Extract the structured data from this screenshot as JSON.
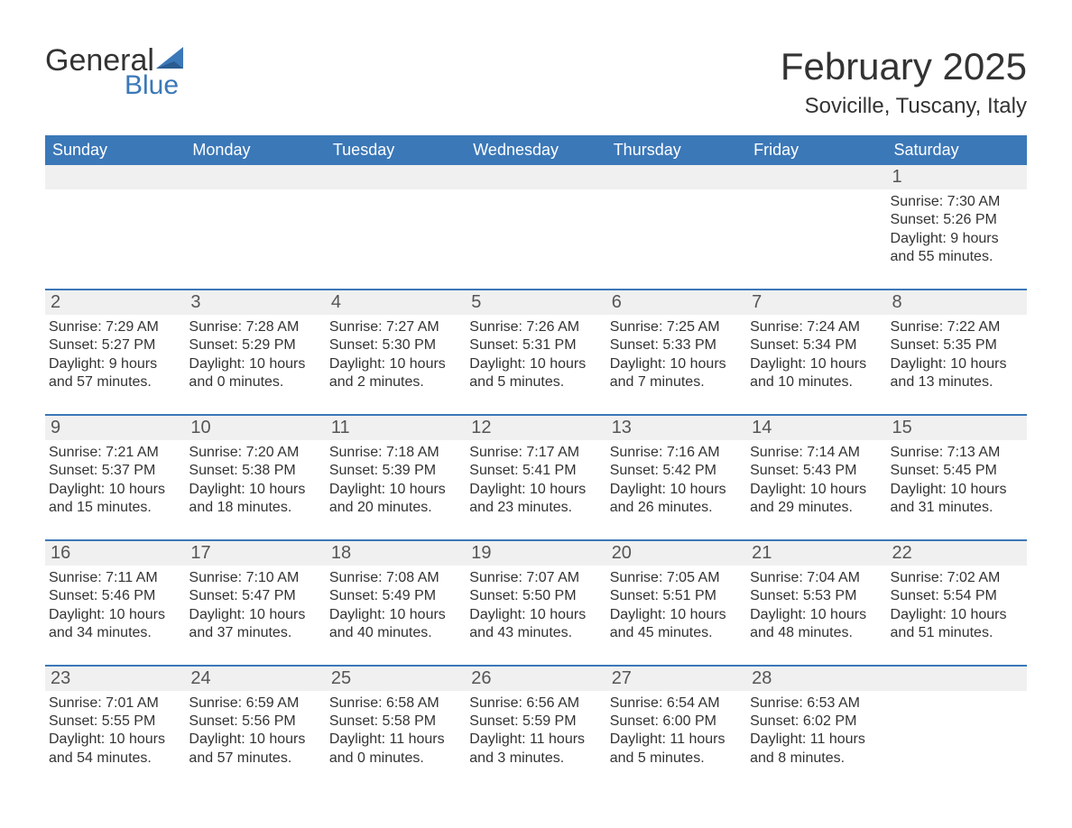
{
  "logo": {
    "text_general": "General",
    "text_blue": "Blue"
  },
  "title": {
    "month": "February 2025",
    "location": "Sovicille, Tuscany, Italy"
  },
  "colors": {
    "header_bg": "#3b78b8",
    "header_fg": "#ffffff",
    "daynum_bg": "#f0f0f0",
    "daynum_border": "#3b78b8",
    "text": "#333333",
    "logo_blue": "#3b78b8"
  },
  "dayNames": [
    "Sunday",
    "Monday",
    "Tuesday",
    "Wednesday",
    "Thursday",
    "Friday",
    "Saturday"
  ],
  "weeks": [
    [
      null,
      null,
      null,
      null,
      null,
      null,
      {
        "n": "1",
        "sunrise": "Sunrise: 7:30 AM",
        "sunset": "Sunset: 5:26 PM",
        "daylight": "Daylight: 9 hours and 55 minutes."
      }
    ],
    [
      {
        "n": "2",
        "sunrise": "Sunrise: 7:29 AM",
        "sunset": "Sunset: 5:27 PM",
        "daylight": "Daylight: 9 hours and 57 minutes."
      },
      {
        "n": "3",
        "sunrise": "Sunrise: 7:28 AM",
        "sunset": "Sunset: 5:29 PM",
        "daylight": "Daylight: 10 hours and 0 minutes."
      },
      {
        "n": "4",
        "sunrise": "Sunrise: 7:27 AM",
        "sunset": "Sunset: 5:30 PM",
        "daylight": "Daylight: 10 hours and 2 minutes."
      },
      {
        "n": "5",
        "sunrise": "Sunrise: 7:26 AM",
        "sunset": "Sunset: 5:31 PM",
        "daylight": "Daylight: 10 hours and 5 minutes."
      },
      {
        "n": "6",
        "sunrise": "Sunrise: 7:25 AM",
        "sunset": "Sunset: 5:33 PM",
        "daylight": "Daylight: 10 hours and 7 minutes."
      },
      {
        "n": "7",
        "sunrise": "Sunrise: 7:24 AM",
        "sunset": "Sunset: 5:34 PM",
        "daylight": "Daylight: 10 hours and 10 minutes."
      },
      {
        "n": "8",
        "sunrise": "Sunrise: 7:22 AM",
        "sunset": "Sunset: 5:35 PM",
        "daylight": "Daylight: 10 hours and 13 minutes."
      }
    ],
    [
      {
        "n": "9",
        "sunrise": "Sunrise: 7:21 AM",
        "sunset": "Sunset: 5:37 PM",
        "daylight": "Daylight: 10 hours and 15 minutes."
      },
      {
        "n": "10",
        "sunrise": "Sunrise: 7:20 AM",
        "sunset": "Sunset: 5:38 PM",
        "daylight": "Daylight: 10 hours and 18 minutes."
      },
      {
        "n": "11",
        "sunrise": "Sunrise: 7:18 AM",
        "sunset": "Sunset: 5:39 PM",
        "daylight": "Daylight: 10 hours and 20 minutes."
      },
      {
        "n": "12",
        "sunrise": "Sunrise: 7:17 AM",
        "sunset": "Sunset: 5:41 PM",
        "daylight": "Daylight: 10 hours and 23 minutes."
      },
      {
        "n": "13",
        "sunrise": "Sunrise: 7:16 AM",
        "sunset": "Sunset: 5:42 PM",
        "daylight": "Daylight: 10 hours and 26 minutes."
      },
      {
        "n": "14",
        "sunrise": "Sunrise: 7:14 AM",
        "sunset": "Sunset: 5:43 PM",
        "daylight": "Daylight: 10 hours and 29 minutes."
      },
      {
        "n": "15",
        "sunrise": "Sunrise: 7:13 AM",
        "sunset": "Sunset: 5:45 PM",
        "daylight": "Daylight: 10 hours and 31 minutes."
      }
    ],
    [
      {
        "n": "16",
        "sunrise": "Sunrise: 7:11 AM",
        "sunset": "Sunset: 5:46 PM",
        "daylight": "Daylight: 10 hours and 34 minutes."
      },
      {
        "n": "17",
        "sunrise": "Sunrise: 7:10 AM",
        "sunset": "Sunset: 5:47 PM",
        "daylight": "Daylight: 10 hours and 37 minutes."
      },
      {
        "n": "18",
        "sunrise": "Sunrise: 7:08 AM",
        "sunset": "Sunset: 5:49 PM",
        "daylight": "Daylight: 10 hours and 40 minutes."
      },
      {
        "n": "19",
        "sunrise": "Sunrise: 7:07 AM",
        "sunset": "Sunset: 5:50 PM",
        "daylight": "Daylight: 10 hours and 43 minutes."
      },
      {
        "n": "20",
        "sunrise": "Sunrise: 7:05 AM",
        "sunset": "Sunset: 5:51 PM",
        "daylight": "Daylight: 10 hours and 45 minutes."
      },
      {
        "n": "21",
        "sunrise": "Sunrise: 7:04 AM",
        "sunset": "Sunset: 5:53 PM",
        "daylight": "Daylight: 10 hours and 48 minutes."
      },
      {
        "n": "22",
        "sunrise": "Sunrise: 7:02 AM",
        "sunset": "Sunset: 5:54 PM",
        "daylight": "Daylight: 10 hours and 51 minutes."
      }
    ],
    [
      {
        "n": "23",
        "sunrise": "Sunrise: 7:01 AM",
        "sunset": "Sunset: 5:55 PM",
        "daylight": "Daylight: 10 hours and 54 minutes."
      },
      {
        "n": "24",
        "sunrise": "Sunrise: 6:59 AM",
        "sunset": "Sunset: 5:56 PM",
        "daylight": "Daylight: 10 hours and 57 minutes."
      },
      {
        "n": "25",
        "sunrise": "Sunrise: 6:58 AM",
        "sunset": "Sunset: 5:58 PM",
        "daylight": "Daylight: 11 hours and 0 minutes."
      },
      {
        "n": "26",
        "sunrise": "Sunrise: 6:56 AM",
        "sunset": "Sunset: 5:59 PM",
        "daylight": "Daylight: 11 hours and 3 minutes."
      },
      {
        "n": "27",
        "sunrise": "Sunrise: 6:54 AM",
        "sunset": "Sunset: 6:00 PM",
        "daylight": "Daylight: 11 hours and 5 minutes."
      },
      {
        "n": "28",
        "sunrise": "Sunrise: 6:53 AM",
        "sunset": "Sunset: 6:02 PM",
        "daylight": "Daylight: 11 hours and 8 minutes."
      },
      null
    ]
  ]
}
